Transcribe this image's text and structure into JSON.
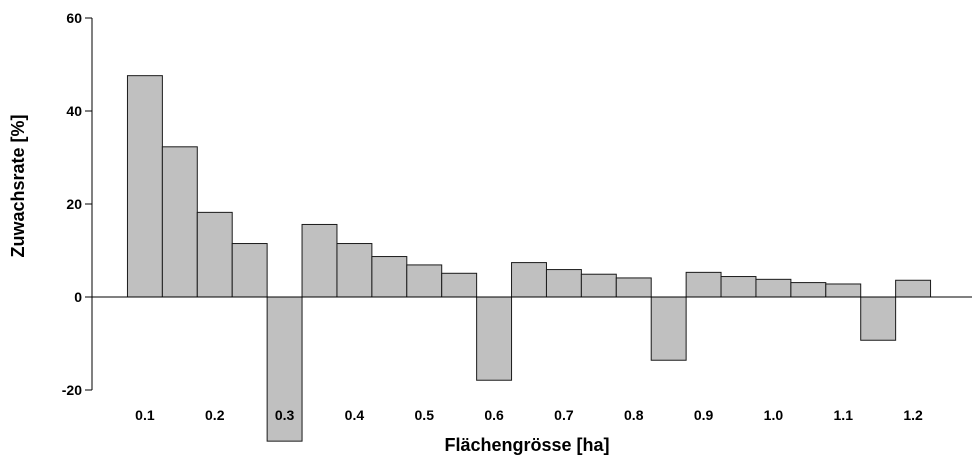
{
  "chart_data": {
    "type": "bar",
    "xlabel": "Flächengrösse [ha]",
    "ylabel": "Zuwachsrate [%]",
    "ylim": [
      -32,
      60
    ],
    "yticks": [
      -20,
      0,
      20,
      40,
      60
    ],
    "xlim": [
      0.05,
      1.25
    ],
    "x_tick_values": [
      0.1,
      0.2,
      0.3,
      0.4,
      0.5,
      0.6,
      0.7,
      0.8,
      0.9,
      1.0,
      1.1,
      1.2
    ],
    "x_tick_labels": [
      "0.1",
      "0.2",
      "0.3",
      "0.4",
      "0.5",
      "0.6",
      "0.7",
      "0.8",
      "0.9",
      "1.0",
      "1.1",
      "1.2"
    ],
    "bar_width": 0.05,
    "x": [
      0.1,
      0.15,
      0.2,
      0.25,
      0.3,
      0.35,
      0.4,
      0.45,
      0.5,
      0.55,
      0.6,
      0.65,
      0.7,
      0.75,
      0.8,
      0.85,
      0.9,
      0.95,
      1.0,
      1.05,
      1.1,
      1.15,
      1.2
    ],
    "values": [
      47.6,
      32.3,
      18.2,
      11.5,
      -31.0,
      15.6,
      11.5,
      8.7,
      6.9,
      5.1,
      -17.9,
      7.4,
      5.9,
      4.9,
      4.1,
      -13.6,
      5.3,
      4.4,
      3.8,
      3.1,
      2.8,
      -9.3,
      3.6
    ],
    "colors": {
      "bar_fill": "#c0c0c0",
      "bar_stroke": "#1a1a1a",
      "axis": "#000000",
      "background": "#ffffff"
    },
    "grid": false,
    "legend": "none"
  }
}
